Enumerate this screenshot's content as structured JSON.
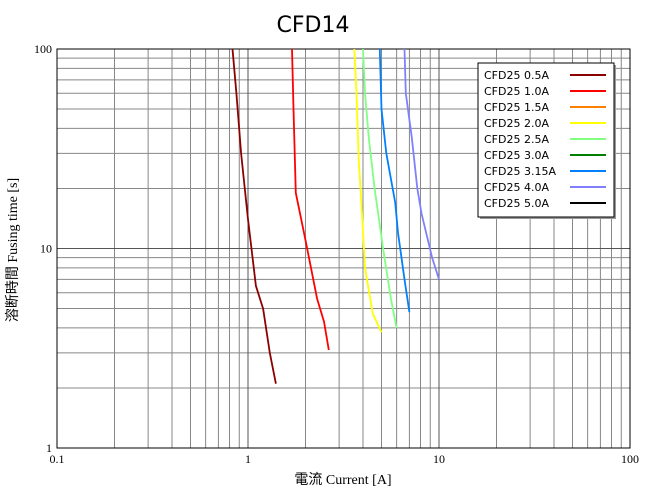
{
  "chart_data": {
    "type": "line",
    "title": "CFD14",
    "xlabel": "電流 Current [A]",
    "ylabel": "溶断時間 Fusing time [s]",
    "x_scale": "log",
    "y_scale": "log",
    "xlim": [
      0.1,
      100
    ],
    "ylim": [
      1,
      100
    ],
    "x_ticks": [
      "0.1",
      "1",
      "10",
      "100"
    ],
    "y_ticks": [
      "1",
      "10",
      "100"
    ],
    "grid": true,
    "legend_position": "top-right",
    "series": [
      {
        "name": "CFD25 0.5A",
        "color": "#8b0000",
        "points": [
          [
            0.83,
            100
          ],
          [
            0.87,
            60
          ],
          [
            0.92,
            30
          ],
          [
            1.0,
            14
          ],
          [
            1.1,
            6.5
          ],
          [
            1.2,
            5.0
          ],
          [
            1.3,
            3.0
          ],
          [
            1.4,
            2.1
          ]
        ]
      },
      {
        "name": "CFD25 1.0A",
        "color": "#ff0000",
        "points": [
          [
            1.7,
            100
          ],
          [
            1.73,
            50
          ],
          [
            1.78,
            19
          ],
          [
            2.0,
            11
          ],
          [
            2.3,
            5.6
          ],
          [
            2.5,
            4.3
          ],
          [
            2.65,
            3.1
          ]
        ]
      },
      {
        "name": "CFD25 1.5A",
        "color": "#ff8000",
        "points": []
      },
      {
        "name": "CFD25 2.0A",
        "color": "#ffff00",
        "points": [
          [
            3.6,
            100
          ],
          [
            3.7,
            60
          ],
          [
            3.8,
            28
          ],
          [
            3.95,
            15
          ],
          [
            4.1,
            8.0
          ],
          [
            4.5,
            4.7
          ],
          [
            5.0,
            3.8
          ]
        ]
      },
      {
        "name": "CFD25 2.5A",
        "color": "#80ff80",
        "points": [
          [
            4.0,
            100
          ],
          [
            4.1,
            60
          ],
          [
            4.3,
            35
          ],
          [
            4.6,
            20
          ],
          [
            5.1,
            10
          ],
          [
            5.6,
            5.6
          ],
          [
            6.0,
            4.0
          ]
        ]
      },
      {
        "name": "CFD25 3.0A",
        "color": "#008000",
        "points": []
      },
      {
        "name": "CFD25 3.15A",
        "color": "#0080ff",
        "points": [
          [
            4.9,
            100
          ],
          [
            5.0,
            50
          ],
          [
            5.3,
            30
          ],
          [
            5.9,
            17
          ],
          [
            6.1,
            12
          ],
          [
            6.6,
            7.0
          ],
          [
            7.0,
            4.8
          ]
        ]
      },
      {
        "name": "CFD25 4.0A",
        "color": "#8080ff",
        "points": [
          [
            6.6,
            100
          ],
          [
            6.7,
            60
          ],
          [
            7.2,
            36
          ],
          [
            7.7,
            20
          ],
          [
            8.1,
            15
          ],
          [
            9.2,
            9.0
          ],
          [
            10.0,
            7.0
          ]
        ]
      },
      {
        "name": "CFD25 5.0A",
        "color": "#000000",
        "points": []
      }
    ]
  }
}
